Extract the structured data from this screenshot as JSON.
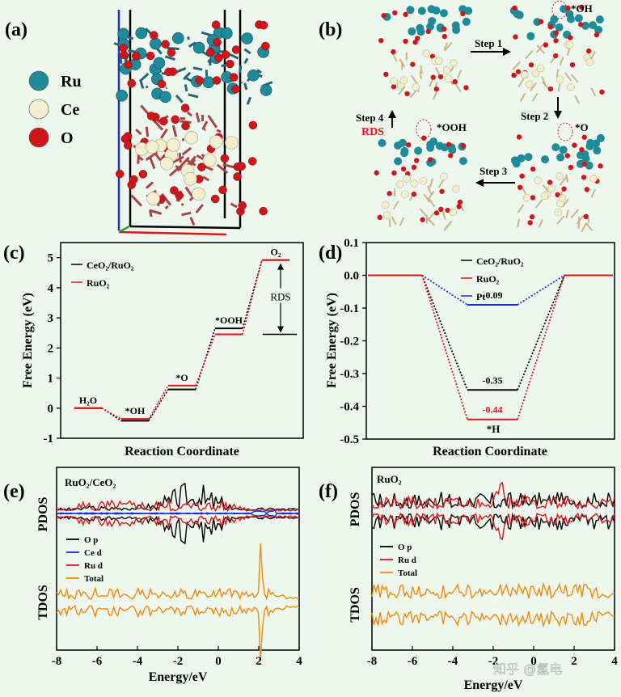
{
  "panels": {
    "a": {
      "label": "(a)",
      "legend": [
        {
          "name": "Ru",
          "color": "#1f8a9a"
        },
        {
          "name": "Ce",
          "color": "#f2eed0"
        },
        {
          "name": "O",
          "color": "#d0161b"
        }
      ]
    },
    "b": {
      "label": "(b)",
      "steps": [
        "Step 1",
        "Step 2",
        "Step 3",
        "Step 4"
      ],
      "rds": "RDS",
      "adsorbates": [
        "*OH",
        "*O",
        "*OOH"
      ]
    }
  },
  "chart_data": [
    {
      "panel": "(c)",
      "type": "line",
      "xlabel": "Reaction Coordinate",
      "ylabel": "Free Energy (eV)",
      "ylim": [
        -1,
        5.5
      ],
      "yticks": [
        -1,
        0,
        1,
        2,
        3,
        4,
        5
      ],
      "states": [
        "H2O",
        "*OH",
        "*O",
        "*OOH",
        "O2"
      ],
      "state_labels": [
        "H₂O",
        "*OH",
        "*O",
        "*OOH",
        "O₂"
      ],
      "series": [
        {
          "name": "CeO₂/RuO₂",
          "color": "#000000",
          "values": [
            0,
            -0.42,
            0.62,
            2.65,
            4.92
          ]
        },
        {
          "name": "RuO₂",
          "color": "#e0141b",
          "values": [
            0,
            -0.36,
            0.75,
            2.45,
            4.92
          ]
        }
      ],
      "annotation": "RDS",
      "legend_position": "top-left"
    },
    {
      "panel": "(d)",
      "type": "line",
      "xlabel": "Reaction Coordinate",
      "ylabel": "Free Energy (eV)",
      "ylim": [
        -0.5,
        0.1
      ],
      "yticks": [
        0.1,
        0.0,
        -0.1,
        -0.2,
        -0.3,
        -0.4,
        -0.5
      ],
      "states": [
        "start",
        "*H",
        "end"
      ],
      "state_labels": [
        "",
        "*H",
        ""
      ],
      "series": [
        {
          "name": "CeO₂/RuO₂",
          "color": "#000000",
          "values": [
            0,
            -0.35,
            0
          ],
          "label": "-0.35"
        },
        {
          "name": "RuO₂",
          "color": "#e0141b",
          "values": [
            0,
            -0.44,
            0
          ],
          "label": "-0.44"
        },
        {
          "name": "Pt",
          "color": "#1a33c4",
          "values": [
            0,
            -0.09,
            0
          ],
          "label": "-0.09"
        }
      ],
      "legend_position": "top-center"
    },
    {
      "panel": "(e)",
      "type": "line",
      "title": "RuO₂/CeO₂",
      "xlabel": "Energy/eV",
      "ylabel_top": "PDOS",
      "ylabel_bottom": "TDOS",
      "xlim": [
        -8,
        4
      ],
      "xticks": [
        -8,
        -6,
        -4,
        -2,
        0,
        2,
        4
      ],
      "series": [
        {
          "name": "O p",
          "color": "#000000"
        },
        {
          "name": "Ce d",
          "color": "#1a33c4"
        },
        {
          "name": "Ru d",
          "color": "#e0141b"
        },
        {
          "name": "Total",
          "color": "#f08a10"
        }
      ]
    },
    {
      "panel": "(f)",
      "type": "line",
      "title": "RuO₂",
      "xlabel": "Energy/eV",
      "ylabel_top": "PDOS",
      "ylabel_bottom": "TDOS",
      "xlim": [
        -8,
        4
      ],
      "xticks": [
        -8,
        -6,
        -4,
        -2,
        0,
        2,
        4
      ],
      "series": [
        {
          "name": "O p",
          "color": "#000000"
        },
        {
          "name": "Ru d",
          "color": "#e0141b"
        },
        {
          "name": "Total",
          "color": "#f08a10"
        }
      ]
    }
  ],
  "watermark": "知乎 @氢电"
}
